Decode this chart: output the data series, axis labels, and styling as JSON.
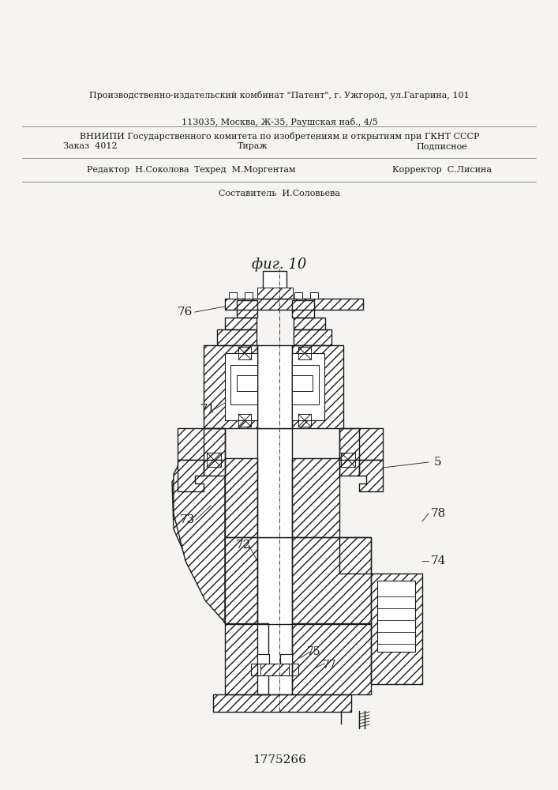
{
  "patent_number": "1775266",
  "fig_label": "фиг. 10",
  "background_color": "#f5f4f1",
  "line_color": "#1a1a1a",
  "editor_line": "Редактор  Н.Соколова",
  "composer_label": "Составитель",
  "composer_name": "И.Соловьева",
  "techred_line": "Техред  М.Моргентам",
  "corrector_line": "Корректор  С.Лисина",
  "order_line": "Заказ  4012",
  "tirazh_line": "Тираж",
  "podpisnoe_line": "Подписное",
  "vniip_line1": "ВНИИПИ Государственного комитета по изобретениям и открытиям при ГКНТ СССР",
  "vniip_line2": "113035, Москва, Ж-35, Раушская наб., 4/5",
  "proizv_line": "Производственно-издательский комбинат \"Патент\", г. Ужгород, ул.Гагарина, 101"
}
